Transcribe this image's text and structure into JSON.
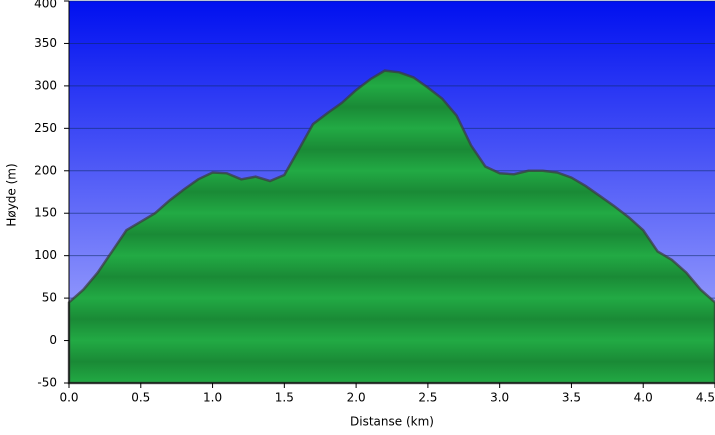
{
  "chart_data": {
    "type": "area",
    "x_label": "Distanse (km)",
    "y_label": "Høyde (m)",
    "xlim": [
      0,
      4.5
    ],
    "ylim": [
      -50,
      400
    ],
    "xticks": [
      {
        "value": 0,
        "label": "0.0"
      },
      0.5,
      {
        "value": 1,
        "label": "1.0"
      },
      1.5,
      {
        "value": 2,
        "label": "2.0"
      },
      2.5,
      {
        "value": 3,
        "label": "3.0"
      },
      3.5,
      {
        "value": 4,
        "label": "4.0"
      },
      4.5
    ],
    "yticks": [
      -50,
      0,
      50,
      100,
      150,
      200,
      250,
      300,
      350,
      400
    ],
    "grid": true,
    "color": "#22aa44",
    "x": [
      0,
      0.1,
      0.2,
      0.3,
      0.4,
      0.5,
      0.6,
      0.7,
      0.8,
      0.9,
      1.0,
      1.1,
      1.2,
      1.3,
      1.4,
      1.5,
      1.6,
      1.7,
      1.8,
      1.9,
      2.0,
      2.1,
      2.2,
      2.3,
      2.4,
      2.5,
      2.6,
      2.7,
      2.8,
      2.9,
      3.0,
      3.1,
      3.2,
      3.3,
      3.4,
      3.5,
      3.6,
      3.7,
      3.8,
      3.9,
      4.0,
      4.1,
      4.2,
      4.3,
      4.4,
      4.5
    ],
    "values": [
      45,
      60,
      80,
      105,
      130,
      140,
      150,
      165,
      178,
      190,
      198,
      197,
      190,
      193,
      188,
      195,
      225,
      255,
      268,
      280,
      295,
      308,
      318,
      316,
      310,
      298,
      285,
      265,
      230,
      205,
      197,
      196,
      200,
      200,
      198,
      192,
      182,
      170,
      158,
      145,
      130,
      105,
      95,
      80,
      60,
      45
    ]
  }
}
